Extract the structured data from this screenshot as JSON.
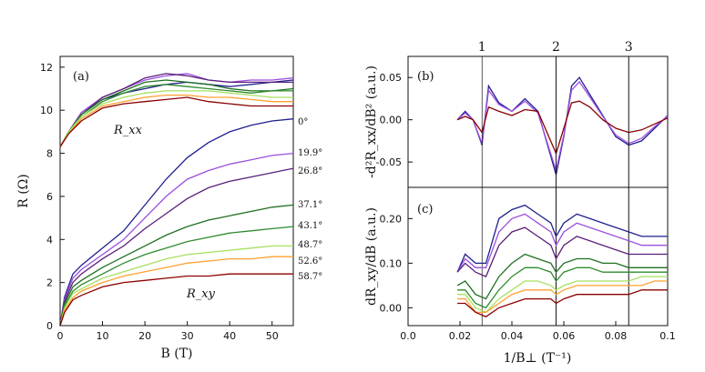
{
  "figure": {
    "colors": [
      "#1f1f8f",
      "#9b4fe0",
      "#5a1f78",
      "#1f6f1f",
      "#2e8b2e",
      "#a6e060",
      "#ffa030",
      "#8b0000"
    ],
    "angles": [
      "0°",
      "19.9°",
      "26.8°",
      "37.1°",
      "43.1°",
      "48.7°",
      "52.6°",
      "58.7°"
    ]
  },
  "chart_data": [
    {
      "type": "line",
      "panel_label": "(a)",
      "xlabel": "B (T)",
      "ylabel": "R (Ω)",
      "xlim": [
        0,
        55
      ],
      "ylim": [
        0,
        12.5
      ],
      "xticks": [
        0,
        10,
        20,
        30,
        40,
        50
      ],
      "yticks": [
        0,
        2,
        4,
        6,
        8,
        10,
        12
      ],
      "annotations": [
        "R_xx",
        "R_xy"
      ],
      "series_rxx": [
        {
          "name": "0°",
          "x": [
            0,
            2,
            5,
            10,
            15,
            20,
            25,
            30,
            35,
            40,
            45,
            50,
            55
          ],
          "values": [
            8.3,
            9.0,
            9.8,
            10.5,
            10.8,
            11.0,
            11.2,
            11.3,
            11.2,
            11.1,
            11.2,
            11.3,
            11.4
          ]
        },
        {
          "name": "19.9°",
          "x": [
            0,
            2,
            5,
            10,
            15,
            20,
            25,
            30,
            35,
            40,
            45,
            50,
            55
          ],
          "values": [
            8.3,
            9.0,
            9.9,
            10.6,
            11.0,
            11.4,
            11.6,
            11.7,
            11.4,
            11.3,
            11.4,
            11.4,
            11.5
          ]
        },
        {
          "name": "26.8°",
          "x": [
            0,
            2,
            5,
            10,
            15,
            20,
            25,
            30,
            35,
            40,
            45,
            50,
            55
          ],
          "values": [
            8.3,
            9.0,
            9.8,
            10.6,
            11.0,
            11.5,
            11.7,
            11.6,
            11.4,
            11.3,
            11.3,
            11.3,
            11.3
          ]
        },
        {
          "name": "37.1°",
          "x": [
            0,
            2,
            5,
            10,
            15,
            20,
            25,
            30,
            35,
            40,
            45,
            50,
            55
          ],
          "values": [
            8.3,
            9.0,
            9.8,
            10.5,
            10.9,
            11.3,
            11.4,
            11.3,
            11.2,
            11.0,
            10.9,
            10.9,
            11.0
          ]
        },
        {
          "name": "43.1°",
          "x": [
            0,
            2,
            5,
            10,
            15,
            20,
            25,
            30,
            35,
            40,
            45,
            50,
            55
          ],
          "values": [
            8.3,
            9.0,
            9.7,
            10.4,
            10.8,
            11.1,
            11.2,
            11.1,
            11.0,
            10.9,
            10.8,
            10.9,
            10.9
          ]
        },
        {
          "name": "48.7°",
          "x": [
            0,
            2,
            5,
            10,
            15,
            20,
            25,
            30,
            35,
            40,
            45,
            50,
            55
          ],
          "values": [
            8.3,
            9.0,
            9.7,
            10.3,
            10.6,
            10.8,
            10.9,
            10.9,
            10.9,
            10.8,
            10.7,
            10.6,
            10.6
          ]
        },
        {
          "name": "52.6°",
          "x": [
            0,
            2,
            5,
            10,
            15,
            20,
            25,
            30,
            35,
            40,
            45,
            50,
            55
          ],
          "values": [
            8.3,
            8.9,
            9.6,
            10.2,
            10.4,
            10.6,
            10.7,
            10.7,
            10.6,
            10.6,
            10.5,
            10.4,
            10.4
          ]
        },
        {
          "name": "58.7°",
          "x": [
            0,
            2,
            5,
            10,
            15,
            20,
            25,
            30,
            35,
            40,
            45,
            50,
            55
          ],
          "values": [
            8.3,
            8.9,
            9.5,
            10.1,
            10.3,
            10.4,
            10.5,
            10.6,
            10.4,
            10.3,
            10.2,
            10.2,
            10.2
          ]
        }
      ],
      "series_rxy": [
        {
          "name": "0°",
          "x": [
            0,
            1,
            3,
            5,
            10,
            15,
            20,
            25,
            30,
            35,
            40,
            45,
            50,
            55
          ],
          "values": [
            0,
            1.3,
            2.4,
            2.8,
            3.6,
            4.4,
            5.6,
            6.8,
            7.8,
            8.5,
            9.0,
            9.3,
            9.5,
            9.6
          ]
        },
        {
          "name": "19.9°",
          "x": [
            0,
            1,
            3,
            5,
            10,
            15,
            20,
            25,
            30,
            35,
            40,
            45,
            50,
            55
          ],
          "values": [
            0,
            1.2,
            2.2,
            2.6,
            3.3,
            4.0,
            5.0,
            6.0,
            6.8,
            7.2,
            7.5,
            7.7,
            7.9,
            8.0
          ]
        },
        {
          "name": "26.8°",
          "x": [
            0,
            1,
            3,
            5,
            10,
            15,
            20,
            25,
            30,
            35,
            40,
            45,
            50,
            55
          ],
          "values": [
            0,
            1.1,
            2.0,
            2.4,
            3.1,
            3.7,
            4.5,
            5.2,
            5.9,
            6.4,
            6.7,
            6.9,
            7.1,
            7.3
          ]
        },
        {
          "name": "37.1°",
          "x": [
            0,
            1,
            3,
            5,
            10,
            15,
            20,
            25,
            30,
            35,
            40,
            45,
            50,
            55
          ],
          "values": [
            0,
            1.0,
            1.8,
            2.1,
            2.7,
            3.2,
            3.7,
            4.2,
            4.6,
            4.9,
            5.1,
            5.3,
            5.5,
            5.6
          ]
        },
        {
          "name": "43.1°",
          "x": [
            0,
            1,
            3,
            5,
            10,
            15,
            20,
            25,
            30,
            35,
            40,
            45,
            50,
            55
          ],
          "values": [
            0,
            0.9,
            1.6,
            1.9,
            2.4,
            2.9,
            3.3,
            3.6,
            3.9,
            4.1,
            4.3,
            4.4,
            4.5,
            4.6
          ]
        },
        {
          "name": "48.7°",
          "x": [
            0,
            1,
            3,
            5,
            10,
            15,
            20,
            25,
            30,
            35,
            40,
            45,
            50,
            55
          ],
          "values": [
            0,
            0.8,
            1.5,
            1.7,
            2.2,
            2.5,
            2.8,
            3.1,
            3.3,
            3.4,
            3.5,
            3.6,
            3.7,
            3.7
          ]
        },
        {
          "name": "52.6°",
          "x": [
            0,
            1,
            3,
            5,
            10,
            15,
            20,
            25,
            30,
            35,
            40,
            45,
            50,
            55
          ],
          "values": [
            0,
            0.7,
            1.3,
            1.6,
            2.0,
            2.3,
            2.5,
            2.7,
            2.9,
            3.0,
            3.1,
            3.1,
            3.2,
            3.2
          ]
        },
        {
          "name": "58.7°",
          "x": [
            0,
            1,
            3,
            5,
            10,
            15,
            20,
            25,
            30,
            35,
            40,
            45,
            50,
            55
          ],
          "values": [
            0,
            0.6,
            1.2,
            1.4,
            1.8,
            2.0,
            2.1,
            2.2,
            2.3,
            2.3,
            2.4,
            2.4,
            2.4,
            2.4
          ]
        }
      ]
    },
    {
      "type": "line",
      "panel_label": "(b)",
      "ylabel": "-d²R_xx/dB² (a.u.)",
      "xlim": [
        0,
        0.1
      ],
      "ylim": [
        -0.08,
        0.075
      ],
      "yticks": [
        -0.05,
        0.0,
        0.05
      ],
      "vertical_lines": [
        {
          "x": 0.0285,
          "label": "1"
        },
        {
          "x": 0.057,
          "label": "2"
        },
        {
          "x": 0.085,
          "label": "3"
        }
      ],
      "series": [
        {
          "name": "0°",
          "x": [
            0.019,
            0.022,
            0.025,
            0.0285,
            0.031,
            0.035,
            0.04,
            0.045,
            0.05,
            0.057,
            0.06,
            0.063,
            0.066,
            0.07,
            0.075,
            0.08,
            0.085,
            0.09,
            0.095,
            0.1
          ],
          "values": [
            0.0,
            0.01,
            0.0,
            -0.03,
            0.04,
            0.02,
            0.01,
            0.025,
            0.01,
            -0.065,
            -0.02,
            0.04,
            0.05,
            0.03,
            0.005,
            -0.02,
            -0.03,
            -0.025,
            -0.01,
            0.005
          ]
        },
        {
          "name": "19.9°",
          "x": [
            0.019,
            0.022,
            0.025,
            0.0285,
            0.031,
            0.035,
            0.04,
            0.045,
            0.05,
            0.057,
            0.06,
            0.063,
            0.066,
            0.07,
            0.075,
            0.08,
            0.085,
            0.09,
            0.095,
            0.1
          ],
          "values": [
            0.0,
            0.008,
            0.0,
            -0.028,
            0.035,
            0.018,
            0.01,
            0.022,
            0.008,
            -0.06,
            -0.018,
            0.035,
            0.045,
            0.027,
            0.004,
            -0.018,
            -0.028,
            -0.022,
            -0.008,
            0.004
          ]
        },
        {
          "name": "58.7°",
          "x": [
            0.019,
            0.022,
            0.025,
            0.0285,
            0.031,
            0.035,
            0.04,
            0.045,
            0.05,
            0.057,
            0.06,
            0.063,
            0.066,
            0.07,
            0.075,
            0.08,
            0.085,
            0.09,
            0.095,
            0.1
          ],
          "values": [
            0.0,
            0.004,
            0.0,
            -0.015,
            0.015,
            0.01,
            0.005,
            0.012,
            0.01,
            -0.04,
            -0.01,
            0.02,
            0.022,
            0.015,
            0.0,
            -0.01,
            -0.015,
            -0.012,
            -0.005,
            0.002
          ]
        }
      ]
    },
    {
      "type": "line",
      "panel_label": "(c)",
      "xlabel": "1/B⊥ (T⁻¹)",
      "ylabel": "dR_xy/dB (a.u.)",
      "xlim": [
        0,
        0.1
      ],
      "ylim": [
        -0.04,
        0.27
      ],
      "xticks": [
        0.0,
        0.02,
        0.04,
        0.06,
        0.08,
        0.1
      ],
      "yticks": [
        0.0,
        0.1,
        0.2
      ],
      "series": [
        {
          "name": "0°",
          "x": [
            0.019,
            0.022,
            0.026,
            0.03,
            0.035,
            0.04,
            0.045,
            0.05,
            0.055,
            0.057,
            0.06,
            0.065,
            0.07,
            0.075,
            0.08,
            0.085,
            0.09,
            0.095,
            0.1
          ],
          "values": [
            0.08,
            0.12,
            0.1,
            0.1,
            0.2,
            0.22,
            0.23,
            0.21,
            0.19,
            0.16,
            0.19,
            0.21,
            0.2,
            0.19,
            0.18,
            0.17,
            0.16,
            0.16,
            0.16
          ]
        },
        {
          "name": "19.9°",
          "x": [
            0.019,
            0.022,
            0.026,
            0.03,
            0.035,
            0.04,
            0.045,
            0.05,
            0.055,
            0.057,
            0.06,
            0.065,
            0.07,
            0.075,
            0.08,
            0.085,
            0.09,
            0.095,
            0.1
          ],
          "values": [
            0.08,
            0.11,
            0.09,
            0.09,
            0.17,
            0.2,
            0.21,
            0.19,
            0.17,
            0.14,
            0.17,
            0.19,
            0.18,
            0.17,
            0.16,
            0.15,
            0.14,
            0.14,
            0.14
          ]
        },
        {
          "name": "26.8°",
          "x": [
            0.019,
            0.022,
            0.026,
            0.03,
            0.035,
            0.04,
            0.045,
            0.05,
            0.055,
            0.057,
            0.06,
            0.065,
            0.07,
            0.075,
            0.08,
            0.085,
            0.09,
            0.095,
            0.1
          ],
          "values": [
            0.08,
            0.1,
            0.08,
            0.07,
            0.14,
            0.17,
            0.18,
            0.16,
            0.14,
            0.11,
            0.14,
            0.16,
            0.15,
            0.14,
            0.13,
            0.12,
            0.12,
            0.12,
            0.12
          ]
        },
        {
          "name": "37.1°",
          "x": [
            0.019,
            0.022,
            0.026,
            0.03,
            0.035,
            0.04,
            0.045,
            0.05,
            0.055,
            0.057,
            0.06,
            0.065,
            0.07,
            0.075,
            0.08,
            0.085,
            0.09,
            0.095,
            0.1
          ],
          "values": [
            0.05,
            0.06,
            0.03,
            0.02,
            0.07,
            0.1,
            0.12,
            0.11,
            0.1,
            0.08,
            0.1,
            0.11,
            0.11,
            0.1,
            0.1,
            0.09,
            0.09,
            0.09,
            0.09
          ]
        },
        {
          "name": "43.1°",
          "x": [
            0.019,
            0.022,
            0.026,
            0.03,
            0.035,
            0.04,
            0.045,
            0.05,
            0.055,
            0.057,
            0.06,
            0.065,
            0.07,
            0.075,
            0.08,
            0.085,
            0.09,
            0.095,
            0.1
          ],
          "values": [
            0.04,
            0.04,
            0.01,
            0.0,
            0.04,
            0.07,
            0.09,
            0.09,
            0.08,
            0.06,
            0.08,
            0.09,
            0.09,
            0.08,
            0.08,
            0.08,
            0.08,
            0.08,
            0.08
          ]
        },
        {
          "name": "48.7°",
          "x": [
            0.019,
            0.022,
            0.026,
            0.03,
            0.035,
            0.04,
            0.045,
            0.05,
            0.055,
            0.057,
            0.06,
            0.065,
            0.07,
            0.075,
            0.08,
            0.085,
            0.09,
            0.095,
            0.1
          ],
          "values": [
            0.03,
            0.03,
            0.0,
            -0.01,
            0.02,
            0.04,
            0.06,
            0.06,
            0.05,
            0.04,
            0.05,
            0.06,
            0.06,
            0.06,
            0.06,
            0.06,
            0.07,
            0.07,
            0.07
          ]
        },
        {
          "name": "52.6°",
          "x": [
            0.019,
            0.022,
            0.026,
            0.03,
            0.035,
            0.04,
            0.045,
            0.05,
            0.055,
            0.057,
            0.06,
            0.065,
            0.07,
            0.075,
            0.08,
            0.085,
            0.09,
            0.095,
            0.1
          ],
          "values": [
            0.02,
            0.02,
            -0.01,
            -0.01,
            0.01,
            0.03,
            0.04,
            0.04,
            0.04,
            0.03,
            0.04,
            0.05,
            0.05,
            0.05,
            0.05,
            0.05,
            0.05,
            0.06,
            0.06
          ]
        },
        {
          "name": "58.7°",
          "x": [
            0.019,
            0.022,
            0.026,
            0.03,
            0.035,
            0.04,
            0.045,
            0.05,
            0.055,
            0.057,
            0.06,
            0.065,
            0.07,
            0.075,
            0.08,
            0.085,
            0.09,
            0.095,
            0.1
          ],
          "values": [
            0.01,
            0.01,
            -0.01,
            -0.02,
            0.0,
            0.01,
            0.02,
            0.02,
            0.02,
            0.01,
            0.02,
            0.03,
            0.03,
            0.03,
            0.03,
            0.03,
            0.04,
            0.04,
            0.04
          ]
        }
      ]
    }
  ]
}
